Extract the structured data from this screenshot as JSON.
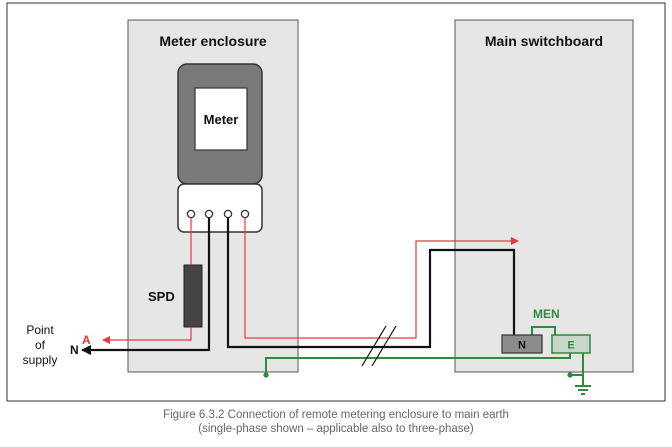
{
  "diagram": {
    "meter_enclosure_title": "Meter enclosure",
    "main_switchboard_title": "Main switchboard",
    "meter_label": "Meter",
    "spd_label": "SPD",
    "men_label": "MEN",
    "neutral_terminal_label": "N",
    "earth_terminal_label": "E",
    "active_label": "A",
    "neutral_label": "N",
    "point_of_supply_label": [
      "Point",
      "of",
      "supply"
    ]
  },
  "caption": {
    "line1": "Figure 6.3.2 Connection of remote metering enclosure to main earth",
    "line2": "(single-phase shown – applicable also to three-phase)"
  },
  "colors": {
    "active": "#e8393a",
    "neutral": "#111111",
    "earth": "#2e8b3a",
    "enclosure_fill": "#e6e6e6",
    "meter_body": "#7a7a7a"
  }
}
